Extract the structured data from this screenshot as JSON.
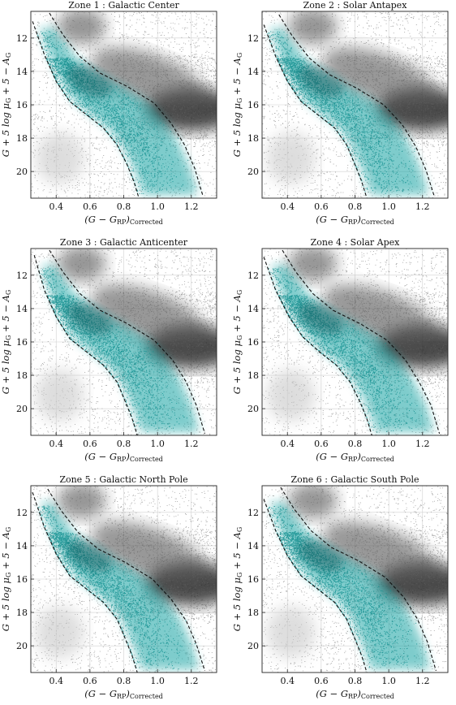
{
  "figure": {
    "shared_axes": {
      "xlabel_main": "(G − G",
      "xlabel_sub": "RP",
      "xlabel_close": ")",
      "xlabel_suffix": "Corrected",
      "ylabel": "G + 5 log μ",
      "ylabel_sub": "G",
      "ylabel_tail": " + 5 − A",
      "ylabel_tail_sub": "G",
      "xlim": [
        0.25,
        1.35
      ],
      "ylim": [
        21.6,
        10.4
      ],
      "xticks": [
        0.4,
        0.6,
        0.8,
        1.0,
        1.2
      ],
      "xtick_labels": [
        "0.4",
        "0.6",
        "0.8",
        "1.0",
        "1.2"
      ],
      "yticks": [
        12,
        14,
        16,
        18,
        20
      ],
      "ytick_labels": [
        "12",
        "14",
        "16",
        "18",
        "20"
      ],
      "colors": {
        "background_stars": "#7a7a7a",
        "selected_stars": "#17a3a3",
        "boundary_line": "#111111",
        "grid": "#d0d0d0"
      }
    }
  },
  "chart_data": [
    {
      "type": "scatter",
      "panel": "zone1",
      "title": "Zone 1 :  Galactic Center",
      "grid": true,
      "boundaries": {
        "left_line": {
          "x": [
            0.26,
            0.33,
            0.4,
            0.48,
            0.58,
            0.68,
            0.76,
            0.82,
            0.86,
            0.89
          ],
          "y": [
            11.0,
            13.0,
            14.6,
            15.8,
            16.6,
            17.4,
            18.4,
            19.6,
            20.6,
            21.6
          ]
        },
        "right_line": {
          "x": [
            0.36,
            0.44,
            0.54,
            0.66,
            0.82,
            0.98,
            1.08,
            1.16,
            1.22,
            1.27
          ],
          "y": [
            10.5,
            11.8,
            13.1,
            14.1,
            14.9,
            15.9,
            17.1,
            18.4,
            19.8,
            21.5
          ]
        }
      }
    },
    {
      "type": "scatter",
      "panel": "zone2",
      "title": "Zone 2 :  Solar Antapex",
      "grid": true,
      "boundaries": {
        "left_line": {
          "x": [
            0.26,
            0.33,
            0.4,
            0.48,
            0.58,
            0.68,
            0.75,
            0.8,
            0.84,
            0.87
          ],
          "y": [
            11.2,
            13.1,
            14.6,
            15.8,
            16.6,
            17.4,
            18.4,
            19.6,
            20.6,
            21.6
          ]
        },
        "right_line": {
          "x": [
            0.35,
            0.43,
            0.53,
            0.65,
            0.81,
            0.97,
            1.08,
            1.16,
            1.22,
            1.27
          ],
          "y": [
            10.6,
            11.9,
            13.2,
            14.2,
            15.0,
            16.0,
            17.2,
            18.5,
            19.9,
            21.5
          ]
        }
      }
    },
    {
      "type": "scatter",
      "panel": "zone3",
      "title": "Zone 3 :  Galactic Anticenter",
      "grid": true,
      "boundaries": {
        "left_line": {
          "x": [
            0.27,
            0.33,
            0.4,
            0.48,
            0.58,
            0.68,
            0.76,
            0.81,
            0.85,
            0.88
          ],
          "y": [
            10.8,
            12.9,
            14.5,
            15.8,
            16.6,
            17.4,
            18.4,
            19.6,
            20.6,
            21.6
          ]
        },
        "right_line": {
          "x": [
            0.36,
            0.44,
            0.54,
            0.66,
            0.82,
            0.98,
            1.09,
            1.17,
            1.23,
            1.28
          ],
          "y": [
            10.5,
            11.8,
            13.1,
            14.1,
            14.9,
            15.9,
            17.1,
            18.4,
            19.8,
            21.5
          ]
        }
      }
    },
    {
      "type": "scatter",
      "panel": "zone4",
      "title": "Zone 4 :  Solar Apex",
      "grid": true,
      "boundaries": {
        "left_line": {
          "x": [
            0.26,
            0.33,
            0.41,
            0.49,
            0.59,
            0.69,
            0.77,
            0.83,
            0.87,
            0.9
          ],
          "y": [
            10.9,
            12.9,
            14.5,
            15.7,
            16.6,
            17.4,
            18.4,
            19.6,
            20.6,
            21.6
          ]
        },
        "right_line": {
          "x": [
            0.37,
            0.45,
            0.55,
            0.67,
            0.83,
            0.99,
            1.1,
            1.18,
            1.25,
            1.3
          ],
          "y": [
            10.5,
            11.8,
            13.1,
            14.1,
            14.9,
            15.9,
            17.1,
            18.4,
            19.8,
            21.5
          ]
        }
      }
    },
    {
      "type": "scatter",
      "panel": "zone5",
      "title": "Zone 5 :  Galactic North Pole",
      "grid": true,
      "boundaries": {
        "left_line": {
          "x": [
            0.26,
            0.33,
            0.4,
            0.48,
            0.58,
            0.68,
            0.76,
            0.81,
            0.85,
            0.88
          ],
          "y": [
            10.8,
            12.9,
            14.5,
            15.8,
            16.6,
            17.4,
            18.4,
            19.6,
            20.6,
            21.6
          ]
        },
        "right_line": {
          "x": [
            0.35,
            0.43,
            0.53,
            0.65,
            0.81,
            0.97,
            1.08,
            1.17,
            1.23,
            1.28
          ],
          "y": [
            10.6,
            11.9,
            13.2,
            14.2,
            15.0,
            16.0,
            17.2,
            18.5,
            19.9,
            21.5
          ]
        }
      }
    },
    {
      "type": "scatter",
      "panel": "zone6",
      "title": "Zone 6 :  Galactic South Pole",
      "grid": true,
      "boundaries": {
        "left_line": {
          "x": [
            0.26,
            0.33,
            0.4,
            0.48,
            0.58,
            0.68,
            0.75,
            0.8,
            0.84,
            0.87
          ],
          "y": [
            11.2,
            13.1,
            14.6,
            15.8,
            16.6,
            17.4,
            18.4,
            19.6,
            20.6,
            21.6
          ]
        },
        "right_line": {
          "x": [
            0.36,
            0.44,
            0.54,
            0.66,
            0.82,
            0.98,
            1.09,
            1.17,
            1.23,
            1.28
          ],
          "y": [
            10.5,
            11.8,
            13.1,
            14.1,
            14.9,
            15.9,
            17.1,
            18.4,
            19.8,
            21.5
          ]
        }
      }
    }
  ]
}
